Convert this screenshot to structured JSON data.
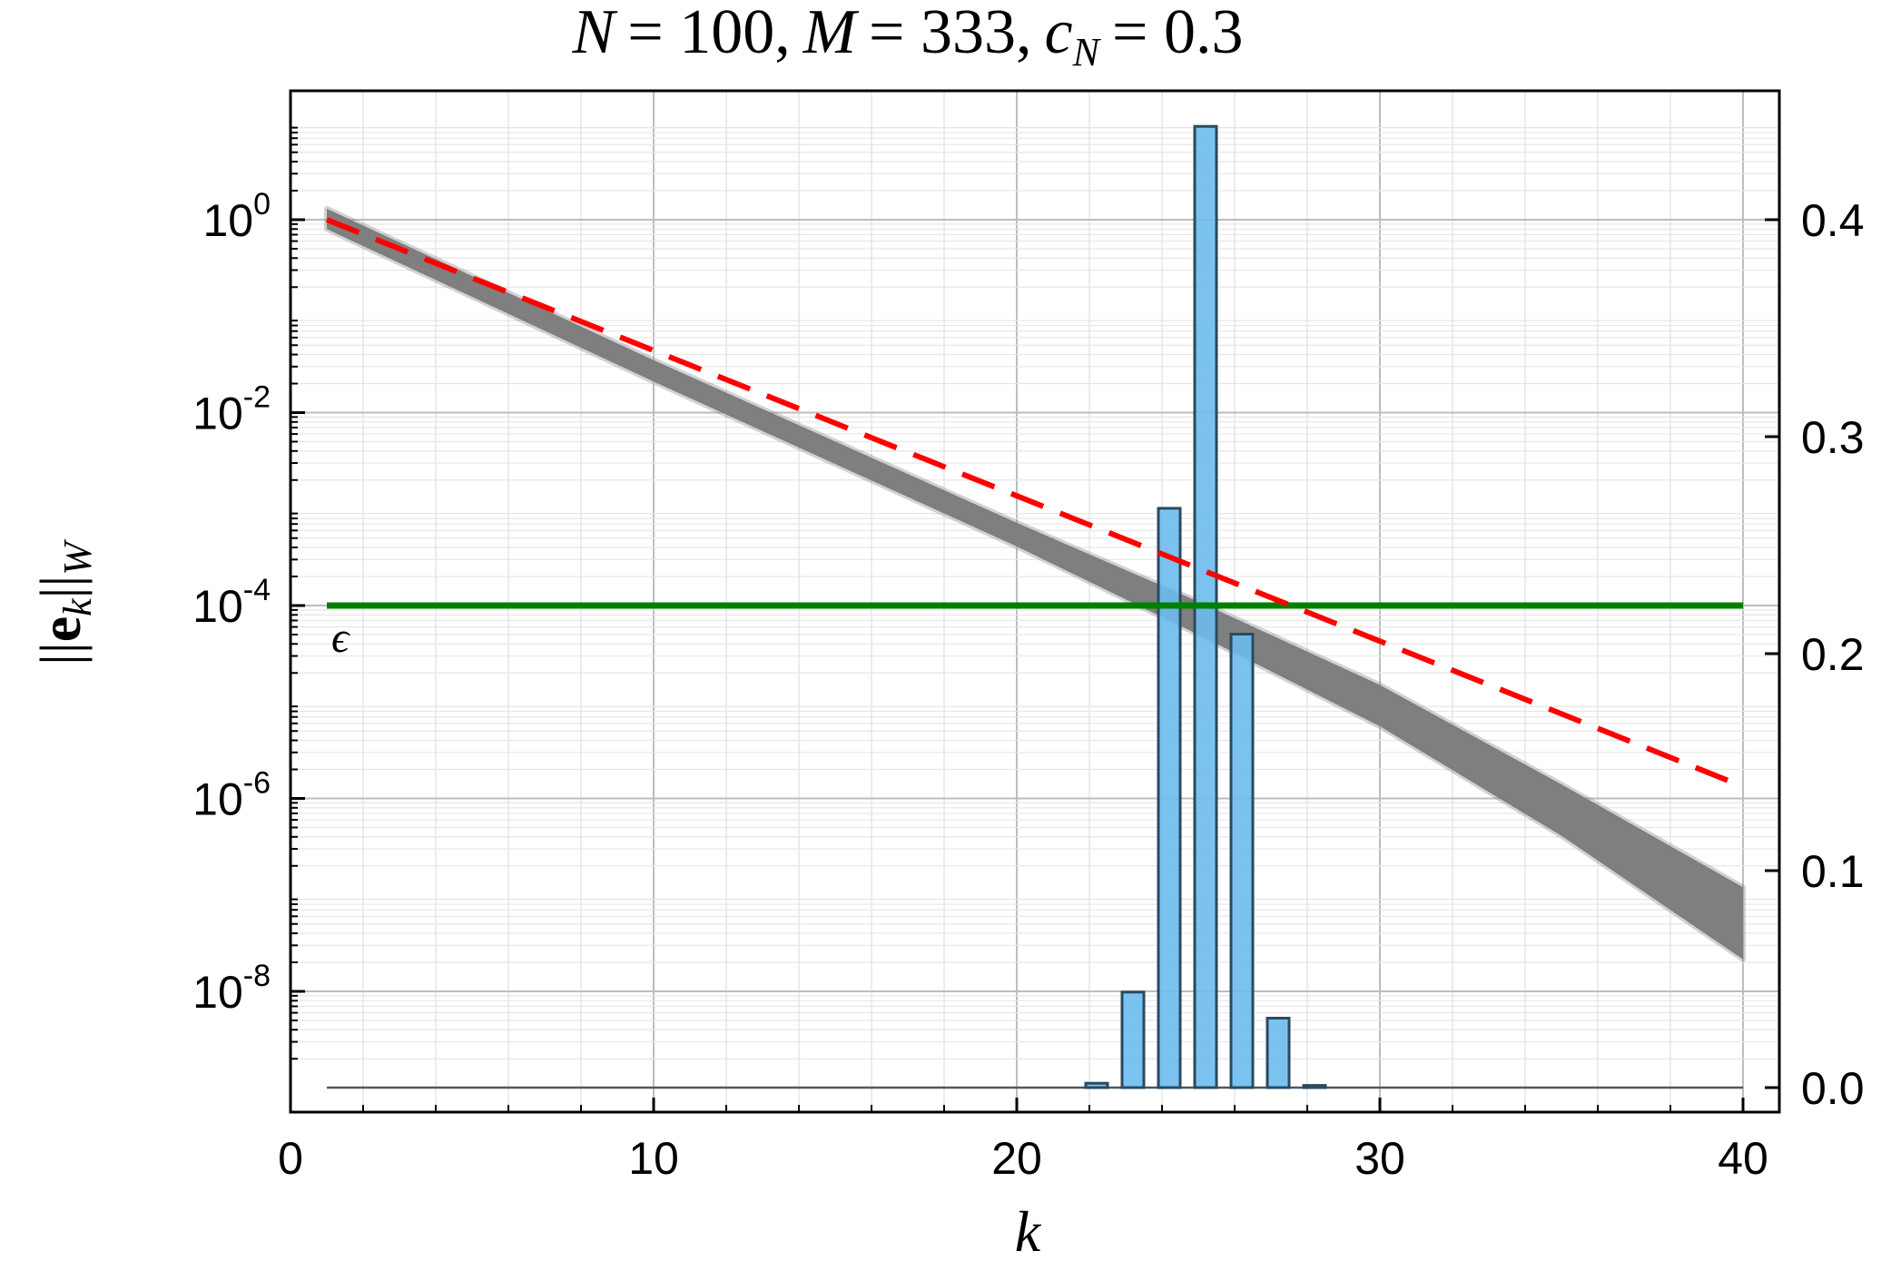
{
  "chart_data": {
    "type": "line",
    "title": "N = 100, M = 333, c_N = 0.3",
    "title_parts": {
      "n_var": "N",
      "n_val": "= 100,",
      "m_var": "M",
      "m_val": "= 333,",
      "c_var": "c",
      "c_sub": "N",
      "c_val": "= 0.3"
    },
    "xlabel": "k",
    "ylabel": "||e_k||_W",
    "ylabel_parts": {
      "left_bars": "||",
      "bold": "e",
      "sub_k": "k",
      "right_bars": "||",
      "sub_w": "W"
    },
    "xlim": [
      0,
      40
    ],
    "x_ticks": [
      0,
      10,
      20,
      30,
      40
    ],
    "x_tick_labels": [
      "0",
      "10",
      "20",
      "30",
      "40"
    ],
    "y_left_scale": "log10",
    "y_left_lim": [
      1e-09,
      20
    ],
    "y_left_ticks": [
      {
        "value": 1,
        "base": "10",
        "exp": "0"
      },
      {
        "value": 0.01,
        "base": "10",
        "exp": "-2"
      },
      {
        "value": 0.0001,
        "base": "10",
        "exp": "-4"
      },
      {
        "value": 1e-06,
        "base": "10",
        "exp": "-6"
      },
      {
        "value": 1e-08,
        "base": "10",
        "exp": "-8"
      }
    ],
    "y_right_lim": [
      -0.01,
      0.44
    ],
    "y_right_ticks": [
      0.0,
      0.1,
      0.2,
      0.3,
      0.4
    ],
    "y_right_tick_labels": [
      "0.0",
      "0.1",
      "0.2",
      "0.3",
      "0.4"
    ],
    "grid": true,
    "series": [
      {
        "type": "band",
        "axis": "left",
        "color": "#7f7f7f",
        "x": [
          1,
          10,
          20,
          25,
          30,
          35,
          40
        ],
        "upper": [
          1.3,
          0.035,
          0.00072,
          0.00011,
          1.5e-05,
          1.4e-06,
          1.2e-07
        ],
        "lower": [
          0.8,
          0.021,
          0.00041,
          5e-05,
          5.6e-06,
          4.1e-07,
          2.15e-08
        ]
      },
      {
        "type": "line",
        "axis": "left",
        "dash": true,
        "color": "#ff0000",
        "x": [
          1,
          40
        ],
        "y": [
          1.0,
          1.33e-06
        ]
      },
      {
        "type": "hline",
        "axis": "left",
        "color": "#008000",
        "y": 0.0001,
        "x": [
          1,
          40
        ],
        "label": "ϵ"
      },
      {
        "type": "bar",
        "axis": "right",
        "color": "#6bbdf0",
        "x": [
          22,
          23,
          24,
          25,
          26,
          27,
          28
        ],
        "values": [
          0.002,
          0.044,
          0.267,
          0.443,
          0.209,
          0.032,
          0.001
        ]
      }
    ]
  }
}
